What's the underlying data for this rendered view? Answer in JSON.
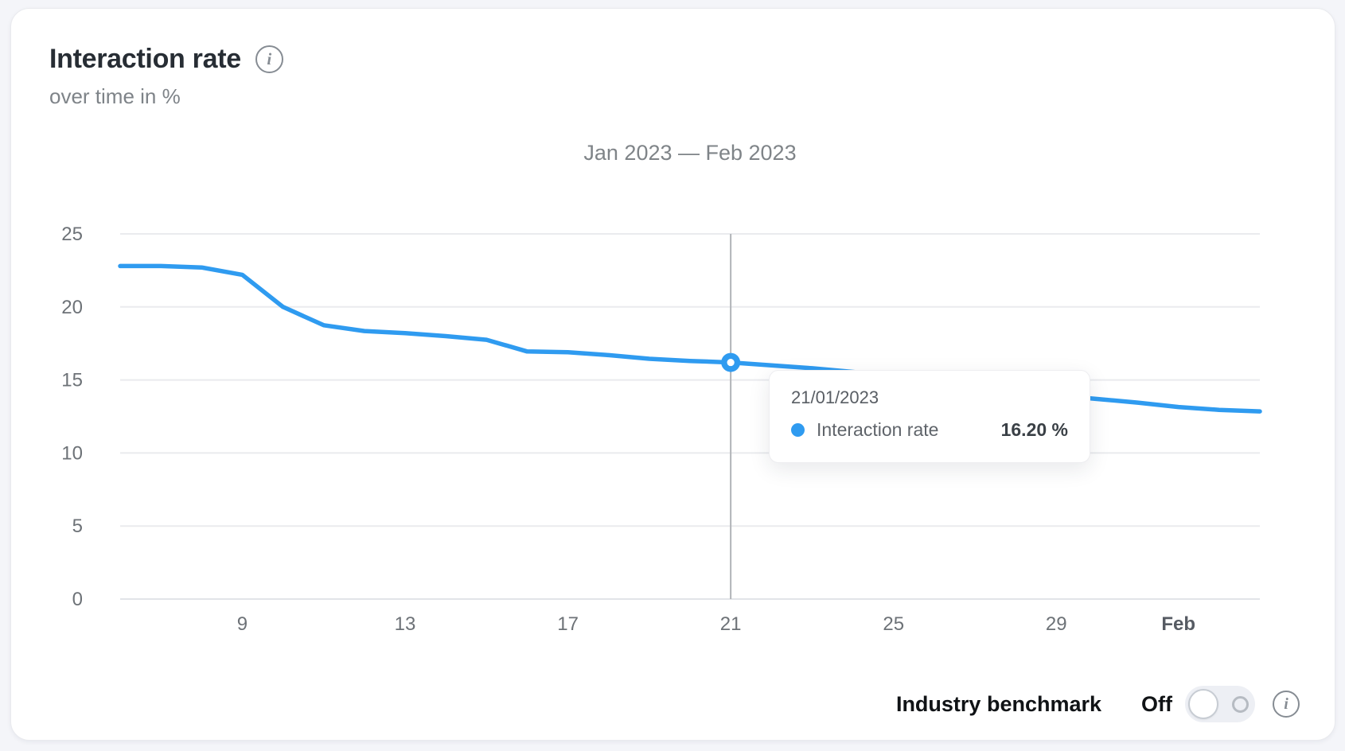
{
  "header": {
    "title": "Interaction rate",
    "subtitle": "over time in %"
  },
  "icons": {
    "info_glyph": "i"
  },
  "chart_data": {
    "type": "line",
    "title": "Jan 2023 — Feb 2023",
    "ylim": [
      0,
      25
    ],
    "yticks": [
      0,
      5,
      10,
      15,
      20,
      25
    ],
    "x_range": [
      6,
      34
    ],
    "x_unit": "day of period (Jan 6 2023 – Feb 3 2023)",
    "grid": true,
    "legend_position": "none",
    "xticks": [
      {
        "pos": 9,
        "label": "9",
        "bold": false
      },
      {
        "pos": 13,
        "label": "13",
        "bold": false
      },
      {
        "pos": 17,
        "label": "17",
        "bold": false
      },
      {
        "pos": 21,
        "label": "21",
        "bold": false
      },
      {
        "pos": 25,
        "label": "25",
        "bold": false
      },
      {
        "pos": 29,
        "label": "29",
        "bold": false
      },
      {
        "pos": 32,
        "label": "Feb",
        "bold": true
      }
    ],
    "series": [
      {
        "name": "Interaction rate",
        "color": "#2f9bf0",
        "x": [
          6,
          7,
          8,
          9,
          10,
          11,
          12,
          13,
          14,
          15,
          16,
          17,
          18,
          19,
          20,
          21,
          22,
          23,
          24,
          25,
          26,
          27,
          28,
          29,
          30,
          31,
          32,
          33,
          34
        ],
        "values": [
          22.8,
          22.8,
          22.7,
          22.2,
          20.0,
          18.75,
          18.35,
          18.2,
          18.0,
          17.75,
          16.95,
          16.9,
          16.7,
          16.45,
          16.3,
          16.2,
          16.0,
          15.8,
          15.55,
          15.3,
          15.0,
          14.65,
          14.3,
          13.95,
          13.7,
          13.45,
          13.15,
          12.95,
          12.85
        ]
      }
    ],
    "highlight": {
      "x": 21,
      "value": 16.2,
      "date": "21/01/2023"
    }
  },
  "tooltip": {
    "date": "21/01/2023",
    "series": "Interaction rate",
    "value": "16.20 %"
  },
  "footer": {
    "benchmark_label": "Industry benchmark",
    "toggle_state": "Off"
  }
}
